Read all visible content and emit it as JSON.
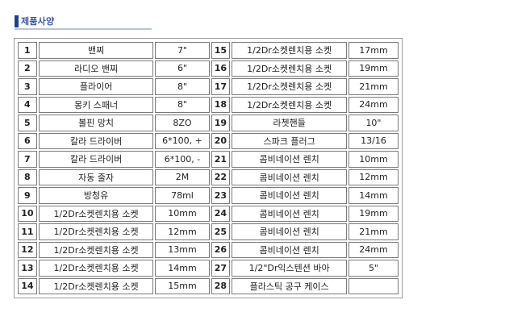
{
  "section": {
    "title": "제품사양"
  },
  "rows": [
    {
      "left_no": "1",
      "left_name": "밴찌",
      "left_spec": "7\"",
      "right_no": "15",
      "right_name": "1/2Dr소켓렌치용 소켓",
      "right_spec": "17mm"
    },
    {
      "left_no": "2",
      "left_name": "라디오 밴찌",
      "left_spec": "6\"",
      "right_no": "16",
      "right_name": "1/2Dr소켓렌치용 소켓",
      "right_spec": "19mm"
    },
    {
      "left_no": "3",
      "left_name": "플라이어",
      "left_spec": "8\"",
      "right_no": "17",
      "right_name": "1/2Dr소켓렌치용 소켓",
      "right_spec": "21mm"
    },
    {
      "left_no": "4",
      "left_name": "몽키 스패너",
      "left_spec": "8\"",
      "right_no": "18",
      "right_name": "1/2Dr소켓렌치용 소켓",
      "right_spec": "24mm"
    },
    {
      "left_no": "5",
      "left_name": "볼핀 망치",
      "left_spec": "8ZO",
      "right_no": "19",
      "right_name": "라쳇핸들",
      "right_spec": "10\""
    },
    {
      "left_no": "6",
      "left_name": "칼라 드라이버",
      "left_spec": "6*100, +",
      "right_no": "20",
      "right_name": "스파크 플러그",
      "right_spec": "13/16"
    },
    {
      "left_no": "7",
      "left_name": "칼라 드라이버",
      "left_spec": "6*100, -",
      "right_no": "21",
      "right_name": "콤비네이션 렌치",
      "right_spec": "10mm"
    },
    {
      "left_no": "8",
      "left_name": "자동 줄자",
      "left_spec": "2M",
      "right_no": "22",
      "right_name": "콤비네이션 렌치",
      "right_spec": "12mm"
    },
    {
      "left_no": "9",
      "left_name": "방청유",
      "left_spec": "78ml",
      "right_no": "23",
      "right_name": "콤비네이션 렌치",
      "right_spec": "14mm"
    },
    {
      "left_no": "10",
      "left_name": "1/2Dr소켓렌치용 소켓",
      "left_spec": "10mm",
      "right_no": "24",
      "right_name": "콤비네이션 렌치",
      "right_spec": "19mm"
    },
    {
      "left_no": "11",
      "left_name": "1/2Dr소켓렌치용 소켓",
      "left_spec": "12mm",
      "right_no": "25",
      "right_name": "콤비네이션 렌치",
      "right_spec": "21mm"
    },
    {
      "left_no": "12",
      "left_name": "1/2Dr소켓렌치용 소켓",
      "left_spec": "13mm",
      "right_no": "26",
      "right_name": "콤비네이션 렌치",
      "right_spec": "24mm"
    },
    {
      "left_no": "13",
      "left_name": "1/2Dr소켓렌치용 소켓",
      "left_spec": "14mm",
      "right_no": "27",
      "right_name": "1/2\"Dr익스텐션 바아",
      "right_spec": "5\""
    },
    {
      "left_no": "14",
      "left_name": "1/2Dr소켓렌치용 소켓",
      "left_spec": "15mm",
      "right_no": "28",
      "right_name": "플라스틱 공구 케이스",
      "right_spec": ""
    }
  ]
}
